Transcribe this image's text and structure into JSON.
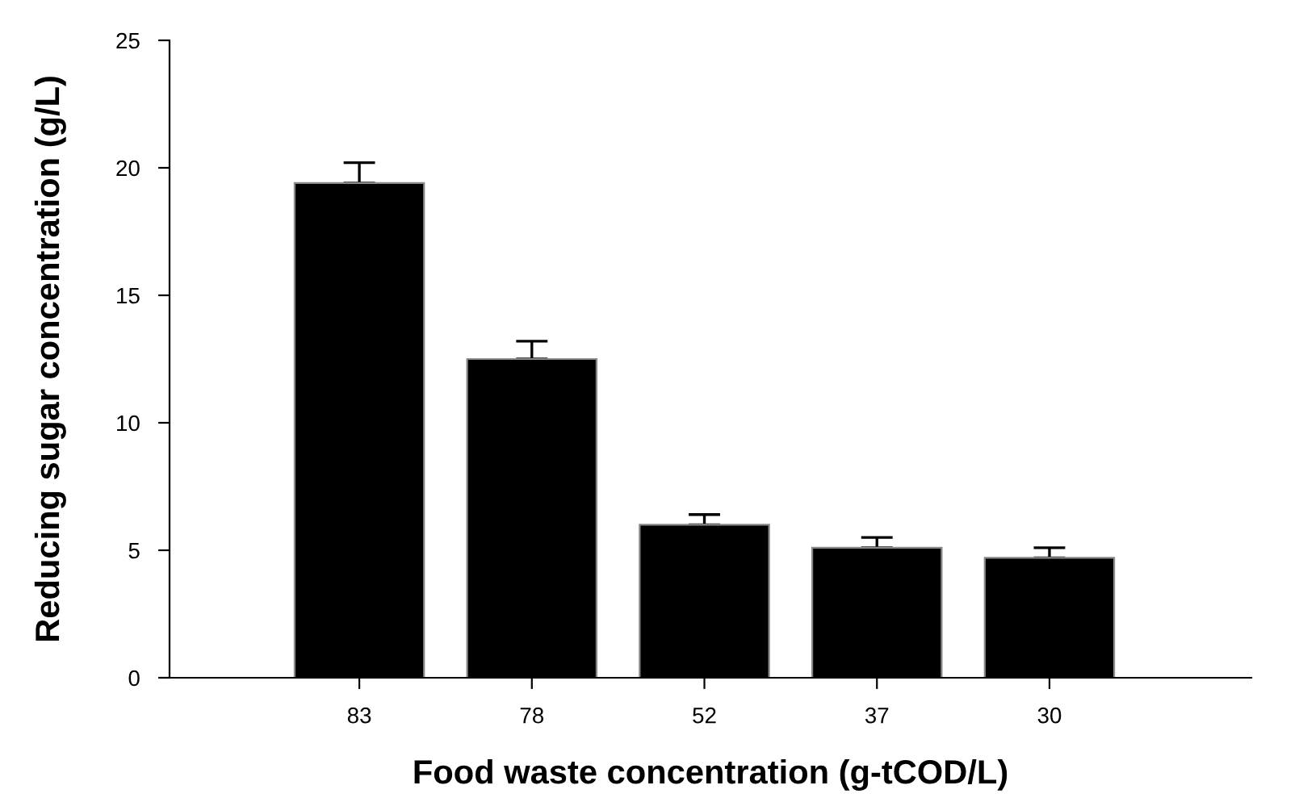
{
  "chart_data": {
    "type": "bar",
    "xlabel": "Food waste concentration (g-tCOD/L)",
    "ylabel": "Reducing sugar concentration (g/L)",
    "categories": [
      "83",
      "78",
      "52",
      "37",
      "30"
    ],
    "values": [
      19.4,
      12.5,
      6.0,
      5.1,
      4.7
    ],
    "errors": [
      [
        19.4,
        20.2
      ],
      [
        12.5,
        13.2
      ],
      [
        6.0,
        6.4
      ],
      [
        5.1,
        5.5
      ],
      [
        4.7,
        5.1
      ]
    ],
    "color": "#000000",
    "ylim": [
      0,
      25
    ],
    "yticks": [
      0,
      5,
      10,
      15,
      20,
      25
    ],
    "grid": false,
    "legend": false
  }
}
